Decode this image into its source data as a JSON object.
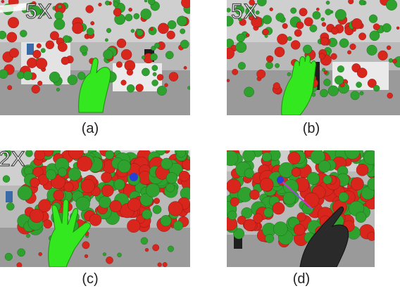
{
  "panels": [
    {
      "id": "a",
      "caption": "(a)",
      "zoom_label": "5X",
      "hand": "green-pinch"
    },
    {
      "id": "b",
      "caption": "(b)",
      "zoom_label": "5X",
      "hand": "green-open"
    },
    {
      "id": "c",
      "caption": "(c)",
      "zoom_label": "2X",
      "hand": "green-spread"
    },
    {
      "id": "d",
      "caption": "(d)",
      "zoom_label": "",
      "hand": "dark-pointing"
    }
  ],
  "colors": {
    "sphere_red": "#d9261c",
    "sphere_green": "#2ea12e",
    "sphere_blue": "#2440d8",
    "hand_green": "#33e81f",
    "hand_dark": "#2a2a2a",
    "ray": "#ff33cc"
  }
}
